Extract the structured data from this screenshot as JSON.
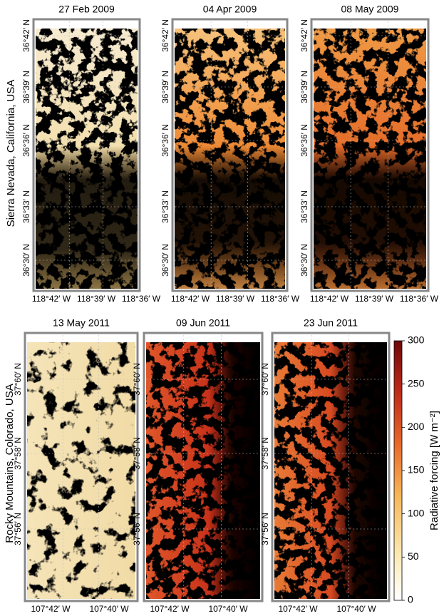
{
  "rows": [
    {
      "label": "Sierra Nevada, California, USA",
      "panels": [
        "27 Feb 2009",
        "04 Apr 2009",
        "08 May 2009"
      ],
      "yticks": [
        "36°42′ N",
        "36°39′ N",
        "36°36′ N",
        "36°33′ N",
        "36°30′ N"
      ],
      "xticks": [
        "118°42′ W",
        "118°39′ W",
        "118°36′ W"
      ]
    },
    {
      "label": "Rocky Mountains, Colorado, USA",
      "panels": [
        "13 May 2011",
        "09 Jun 2011",
        "23 Jun 2011"
      ],
      "yticks": [
        "37°60′ N",
        "37°58′ N",
        "37°56′ N"
      ],
      "xticks": [
        "107°42′ W",
        "107°40′ W"
      ]
    }
  ],
  "colorbar": {
    "label": "Radiative forcing [W m⁻²]",
    "lim": [
      0,
      300
    ],
    "ticks": [
      0,
      50,
      100,
      150,
      200,
      250,
      300
    ]
  }
}
